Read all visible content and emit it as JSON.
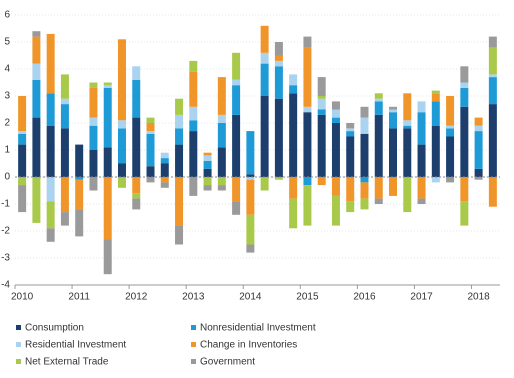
{
  "chart_data": {
    "type": "stacked-bar",
    "categories": [
      "2010",
      null,
      null,
      null,
      "2011",
      null,
      null,
      null,
      "2012",
      null,
      null,
      null,
      "2013",
      null,
      null,
      null,
      "2014",
      null,
      null,
      null,
      "2015",
      null,
      null,
      null,
      "2016",
      null,
      null,
      null,
      "2017",
      null,
      null,
      null,
      "2018",
      null
    ],
    "series": [
      {
        "name": "Consumption",
        "color": "#1d3f6e",
        "values": [
          1.2,
          2.2,
          1.9,
          1.8,
          1.2,
          1.0,
          1.1,
          0.5,
          2.2,
          0.4,
          0.5,
          1.2,
          1.7,
          0.3,
          1.1,
          2.3,
          0.1,
          3.0,
          2.9,
          3.1,
          2.4,
          2.3,
          2.0,
          1.5,
          1.6,
          2.3,
          1.8,
          1.8,
          1.2,
          1.9,
          1.5,
          2.6,
          0.3,
          2.7
        ]
      },
      {
        "name": "Nonresidential Investment",
        "color": "#1e9ad6",
        "values": [
          0.4,
          1.4,
          1.2,
          0.9,
          -0.1,
          0.9,
          2.2,
          1.3,
          1.4,
          1.2,
          0.2,
          0.6,
          0.4,
          0.3,
          0.9,
          1.1,
          1.6,
          1.2,
          1.2,
          0.3,
          -0.3,
          0.2,
          0.2,
          0.2,
          -0.2,
          0.5,
          0.6,
          0.1,
          1.2,
          0.9,
          0.3,
          0.7,
          1.4,
          1.0
        ]
      },
      {
        "name": "Residential Investment",
        "color": "#a9d3ee",
        "values": [
          0.1,
          0.6,
          -0.9,
          0.2,
          0.0,
          0.3,
          0.1,
          0.3,
          0.5,
          0.1,
          0.2,
          0.5,
          0.5,
          0.2,
          0.3,
          0.2,
          -0.1,
          0.4,
          0.2,
          0.4,
          0.2,
          0.4,
          0.3,
          0.1,
          0.6,
          0.1,
          0.1,
          0.2,
          0.4,
          -0.2,
          0.1,
          0.2,
          0.2,
          0.1
        ]
      },
      {
        "name": "Change in Inventories",
        "color": "#f0952a",
        "values": [
          1.3,
          1.0,
          2.2,
          -1.3,
          -1.1,
          1.1,
          -2.3,
          3.0,
          -0.6,
          0.3,
          -0.2,
          -1.8,
          1.3,
          0.1,
          1.4,
          -0.9,
          -1.3,
          1.0,
          0.2,
          -0.8,
          2.2,
          -0.3,
          -0.7,
          -0.9,
          -0.6,
          -0.8,
          -0.7,
          1.0,
          -0.8,
          0.3,
          1.1,
          -0.9,
          0.3,
          -1.1
        ]
      },
      {
        "name": "Net External Trade",
        "color": "#a8c94a",
        "values": [
          -0.3,
          -1.7,
          -1.0,
          0.9,
          0.0,
          0.2,
          0.1,
          -0.4,
          -0.2,
          0.2,
          0.0,
          0.6,
          0.4,
          -0.3,
          -0.3,
          1.0,
          -1.1,
          -0.5,
          -0.1,
          -1.1,
          -1.5,
          0.1,
          -1.1,
          -0.4,
          -0.4,
          0.2,
          0.0,
          -1.3,
          0.0,
          0.1,
          0.0,
          -0.9,
          0.0,
          1.0
        ]
      },
      {
        "name": "Government",
        "color": "#9a9a9a",
        "values": [
          -1.0,
          0.2,
          -0.5,
          -0.5,
          -1.0,
          -0.5,
          -1.3,
          0.0,
          -0.4,
          -0.2,
          -0.2,
          -0.7,
          -0.7,
          -0.2,
          -0.2,
          -0.5,
          -0.3,
          0.0,
          0.5,
          0.0,
          0.4,
          0.7,
          0.3,
          0.2,
          0.4,
          -0.2,
          0.1,
          0.0,
          -0.2,
          0.0,
          -0.2,
          0.6,
          -0.1,
          0.4
        ]
      }
    ],
    "ylim": [
      -4,
      6
    ],
    "yticks": [
      -4,
      -3,
      -2,
      -1,
      0,
      1,
      2,
      3,
      4,
      5,
      6
    ]
  }
}
